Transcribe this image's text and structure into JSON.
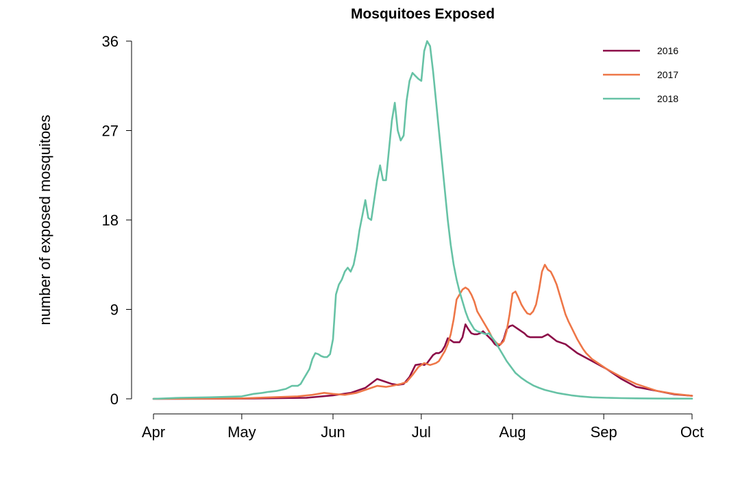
{
  "chart_data": {
    "type": "line",
    "title": "Mosquitoes Exposed",
    "xlabel": "",
    "ylabel": "number of exposed mosquitoes",
    "x_tick_labels": [
      "Apr",
      "May",
      "Jun",
      "Jul",
      "Aug",
      "Sep",
      "Oct"
    ],
    "y_ticks": [
      0,
      9,
      18,
      27,
      36
    ],
    "ylim": [
      0,
      36
    ],
    "grid": false,
    "legend_position": "top-right",
    "x_unit": "day-of-year",
    "x_range": [
      91,
      274
    ],
    "x_tick_values": [
      91,
      121,
      152,
      182,
      213,
      244,
      274
    ],
    "series": [
      {
        "name": "2016",
        "color": "#8B0A47",
        "x": [
          91,
          121,
          143,
          152,
          158,
          163,
          167,
          170,
          172,
          174,
          176,
          178,
          179,
          180,
          182,
          183,
          184,
          185,
          186,
          187,
          188,
          189,
          190,
          191,
          193,
          195,
          196,
          197,
          198,
          199,
          200,
          201,
          202,
          203,
          204,
          205,
          206,
          207,
          208,
          209,
          210,
          211,
          212,
          213,
          214,
          215,
          216,
          217,
          218,
          219,
          220,
          221,
          223,
          225,
          228,
          231,
          235,
          240,
          245,
          250,
          255,
          262,
          268,
          274
        ],
        "values": [
          0,
          0.02,
          0.1,
          0.35,
          0.6,
          1.1,
          2.0,
          1.7,
          1.5,
          1.4,
          1.5,
          2.2,
          2.8,
          3.4,
          3.5,
          3.4,
          3.6,
          4.0,
          4.4,
          4.6,
          4.6,
          4.8,
          5.3,
          6.1,
          5.7,
          5.7,
          6.2,
          7.5,
          7.0,
          6.6,
          6.5,
          6.5,
          6.6,
          6.8,
          6.5,
          6.2,
          5.9,
          5.5,
          5.3,
          5.5,
          6.0,
          7.0,
          7.3,
          7.4,
          7.2,
          7.0,
          6.8,
          6.6,
          6.3,
          6.2,
          6.2,
          6.2,
          6.2,
          6.5,
          5.8,
          5.5,
          4.6,
          3.8,
          3.0,
          2.0,
          1.2,
          0.8,
          0.45,
          0.3
        ]
      },
      {
        "name": "2017",
        "color": "#EE7647",
        "x": [
          91,
          121,
          140,
          145,
          149,
          152,
          156,
          160,
          164,
          167,
          170,
          172,
          175,
          177,
          179,
          181,
          183,
          184,
          185,
          186,
          187,
          188,
          189,
          190,
          191,
          192,
          193,
          194,
          195,
          196,
          197,
          198,
          199,
          200,
          201,
          203,
          205,
          206,
          207,
          208,
          209,
          210,
          211,
          212,
          213,
          214,
          215,
          216,
          217,
          218,
          219,
          220,
          221,
          222,
          223,
          224,
          225,
          226,
          227,
          228,
          229,
          230,
          231,
          232,
          233,
          234,
          235,
          236,
          237,
          238,
          239,
          240,
          245,
          250,
          255,
          262,
          268,
          274
        ],
        "values": [
          0,
          0.05,
          0.25,
          0.4,
          0.6,
          0.5,
          0.4,
          0.6,
          1.0,
          1.3,
          1.2,
          1.3,
          1.5,
          1.7,
          2.4,
          3.2,
          3.6,
          3.5,
          3.4,
          3.5,
          3.6,
          3.8,
          4.3,
          4.8,
          5.5,
          6.5,
          8.0,
          10.0,
          10.5,
          11.0,
          11.2,
          11.0,
          10.5,
          9.8,
          8.8,
          7.8,
          6.8,
          6.2,
          5.8,
          5.5,
          5.5,
          5.8,
          6.8,
          8.5,
          10.6,
          10.8,
          10.2,
          9.5,
          9.0,
          8.6,
          8.5,
          8.8,
          9.5,
          11.0,
          12.8,
          13.5,
          13.0,
          12.8,
          12.2,
          11.5,
          10.5,
          9.5,
          8.5,
          7.8,
          7.2,
          6.6,
          6.0,
          5.5,
          5.0,
          4.6,
          4.3,
          4.0,
          3.0,
          2.2,
          1.5,
          0.8,
          0.5,
          0.3
        ]
      },
      {
        "name": "2018",
        "color": "#66C2A5",
        "x": [
          91,
          100,
          110,
          121,
          125,
          128,
          130,
          133,
          136,
          138,
          140,
          141,
          142,
          143,
          144,
          145,
          146,
          147,
          148,
          149,
          150,
          151,
          152,
          153,
          154,
          155,
          156,
          157,
          158,
          159,
          160,
          161,
          162,
          163,
          164,
          165,
          166,
          167,
          168,
          169,
          170,
          171,
          172,
          173,
          174,
          175,
          176,
          177,
          178,
          179,
          180,
          181,
          182,
          183,
          184,
          185,
          186,
          187,
          188,
          189,
          190,
          191,
          192,
          193,
          194,
          195,
          196,
          197,
          198,
          199,
          200,
          201,
          202,
          203,
          204,
          205,
          206,
          207,
          208,
          209,
          210,
          211,
          212,
          213,
          214,
          216,
          218,
          220,
          222,
          224,
          226,
          228,
          230,
          233,
          236,
          240,
          245,
          250,
          255,
          262,
          268,
          274
        ],
        "values": [
          0,
          0.1,
          0.15,
          0.25,
          0.5,
          0.6,
          0.7,
          0.8,
          1.0,
          1.3,
          1.3,
          1.5,
          2.0,
          2.5,
          3.0,
          4.0,
          4.6,
          4.5,
          4.3,
          4.2,
          4.2,
          4.5,
          6.0,
          10.5,
          11.5,
          12.0,
          12.8,
          13.2,
          12.8,
          13.5,
          15.0,
          17.0,
          18.5,
          20.0,
          18.2,
          18.0,
          20.0,
          22.0,
          23.5,
          22.0,
          22.0,
          25.0,
          28.0,
          29.8,
          27.0,
          26.0,
          26.5,
          30.0,
          32.0,
          32.8,
          32.5,
          32.2,
          32.0,
          35.0,
          36.0,
          35.5,
          33.0,
          30.0,
          27.0,
          24.0,
          21.0,
          18.0,
          15.5,
          13.5,
          12.0,
          10.8,
          9.8,
          8.8,
          8.0,
          7.5,
          7.0,
          6.8,
          6.7,
          6.6,
          6.5,
          6.6,
          6.2,
          5.8,
          5.3,
          4.8,
          4.3,
          3.8,
          3.4,
          3.0,
          2.6,
          2.1,
          1.7,
          1.35,
          1.1,
          0.9,
          0.75,
          0.6,
          0.5,
          0.35,
          0.25,
          0.15,
          0.1,
          0.07,
          0.05,
          0.03,
          0.02,
          0.02
        ]
      }
    ]
  }
}
